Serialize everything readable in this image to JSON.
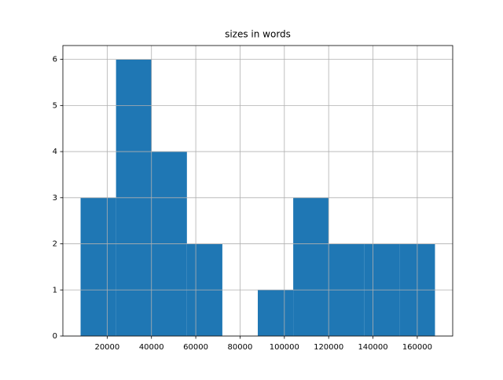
{
  "chart_data": {
    "type": "histogram",
    "title": "sizes in words",
    "bins": [
      8000,
      24000,
      40000,
      56000,
      72000,
      88000,
      104000,
      120000,
      136000,
      152000,
      168000
    ],
    "values": [
      3,
      6,
      4,
      2,
      0,
      1,
      3,
      2,
      2,
      2
    ],
    "color": "#1f77b4",
    "xlim": [
      0,
      176000
    ],
    "xticks": [
      20000,
      40000,
      60000,
      80000,
      100000,
      120000,
      140000,
      160000
    ],
    "ylim": [
      0,
      6.3
    ],
    "yticks": [
      0,
      1,
      2,
      3,
      4,
      5,
      6
    ],
    "grid": true
  }
}
